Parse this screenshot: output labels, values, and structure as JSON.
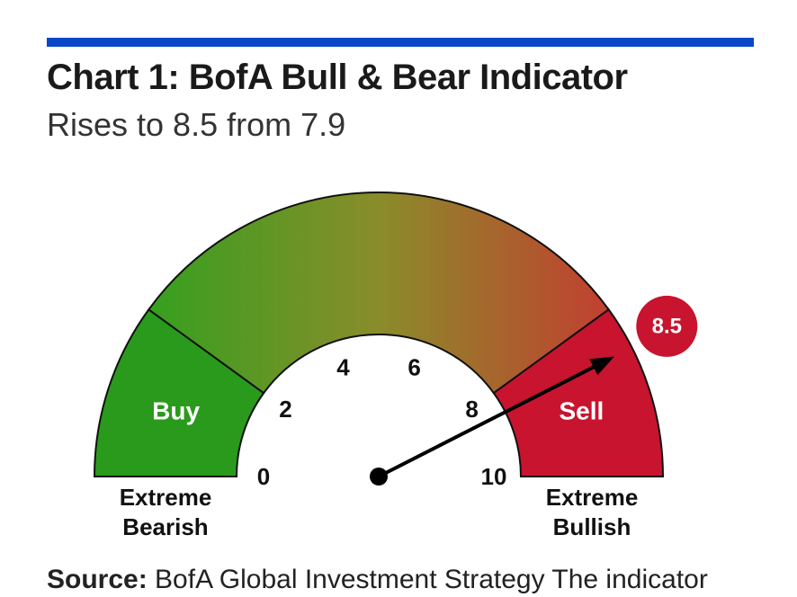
{
  "title": "Chart 1: BofA Bull & Bear Indicator",
  "subtitle": "Rises to 8.5 from 7.9",
  "source": {
    "label": "Source:",
    "text": "BofA Global Investment Strategy The indicator"
  },
  "chart_data": {
    "type": "gauge",
    "title": "Chart 1: BofA Bull & Bear Indicator",
    "subtitle": "Rises to 8.5 from 7.9",
    "range": [
      0,
      10
    ],
    "value": 8.5,
    "value_label": "8.5",
    "previous_value": 7.9,
    "ticks": [
      "0",
      "2",
      "4",
      "6",
      "8",
      "10"
    ],
    "zones": [
      {
        "name": "Buy",
        "from": 0,
        "to": 2,
        "color": "#2a9a1c"
      },
      {
        "name": "",
        "from": 2,
        "to": 8,
        "colors": [
          "#35a01f",
          "#c23f30"
        ]
      },
      {
        "name": "Sell",
        "from": 8,
        "to": 10,
        "color": "#c8142e"
      }
    ],
    "left_end_label": [
      "Extreme",
      "Bearish"
    ],
    "right_end_label": [
      "Extreme",
      "Bullish"
    ],
    "badge_color": "#c8142e"
  }
}
